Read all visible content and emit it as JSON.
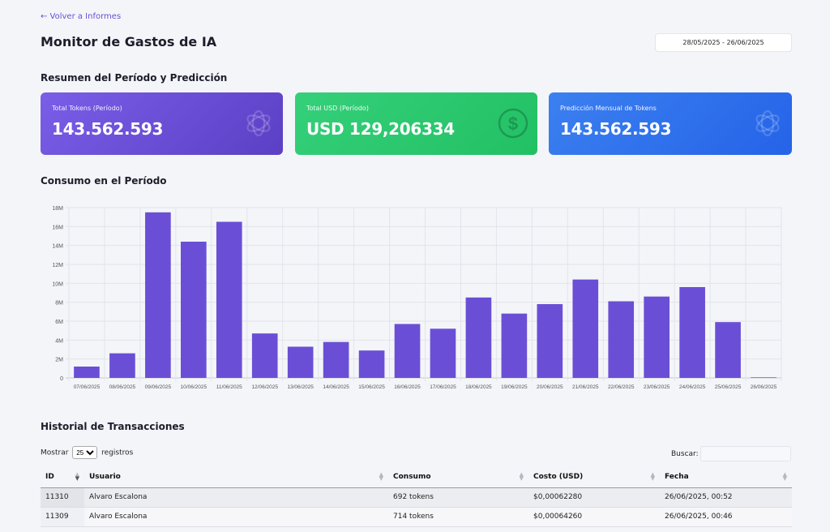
{
  "nav": {
    "back_label": "← Volver a Informes"
  },
  "header": {
    "title": "Monitor de Gastos de IA",
    "date_range": "28/05/2025 - 26/06/2025"
  },
  "summary": {
    "title": "Resumen del Período y Predicción",
    "cards": [
      {
        "label": "Total Tokens (Período)",
        "value": "143.562.593",
        "icon": "openai-icon",
        "color": "#6a4fd6"
      },
      {
        "label": "Total USD (Período)",
        "value": "USD 129,206334",
        "icon": "dollar-icon",
        "color": "#2bc86e"
      },
      {
        "label": "Predicción Mensual de Tokens",
        "value": "143.562.593",
        "icon": "openai-icon",
        "color": "#2f6fec"
      }
    ]
  },
  "consumption": {
    "title": "Consumo en el Período"
  },
  "chart_data": {
    "type": "bar",
    "categories": [
      "07/06/2025",
      "08/06/2025",
      "09/06/2025",
      "10/06/2025",
      "11/06/2025",
      "12/06/2025",
      "13/06/2025",
      "14/06/2025",
      "15/06/2025",
      "16/06/2025",
      "17/06/2025",
      "18/06/2025",
      "19/06/2025",
      "20/06/2025",
      "21/06/2025",
      "22/06/2025",
      "23/06/2025",
      "24/06/2025",
      "25/06/2025",
      "26/06/2025"
    ],
    "values": [
      1200000,
      2600000,
      17500000,
      14400000,
      16500000,
      4700000,
      3300000,
      3800000,
      2900000,
      5700000,
      5200000,
      8500000,
      6800000,
      7800000,
      10400000,
      8100000,
      8600000,
      9600000,
      5900000,
      60000
    ],
    "yticks": [
      "0",
      "2M",
      "4M",
      "6M",
      "8M",
      "10M",
      "12M",
      "14M",
      "16M",
      "18M"
    ],
    "ylim": [
      0,
      18000000
    ],
    "grid": true,
    "bar_color": "#6a4fd6"
  },
  "history": {
    "title": "Historial de Transacciones",
    "length_prefix": "Mostrar",
    "length_value": "25",
    "length_suffix": "registros",
    "search_label": "Buscar:",
    "columns": [
      "ID",
      "Usuario",
      "Consumo",
      "Costo (USD)",
      "Fecha"
    ],
    "rows": [
      {
        "id": "11310",
        "user": "Alvaro Escalona",
        "consumo": "692 tokens",
        "costo": "$0,00062280",
        "fecha": "26/06/2025, 00:52"
      },
      {
        "id": "11309",
        "user": "Alvaro Escalona",
        "consumo": "714 tokens",
        "costo": "$0,00064260",
        "fecha": "26/06/2025, 00:46"
      }
    ]
  }
}
